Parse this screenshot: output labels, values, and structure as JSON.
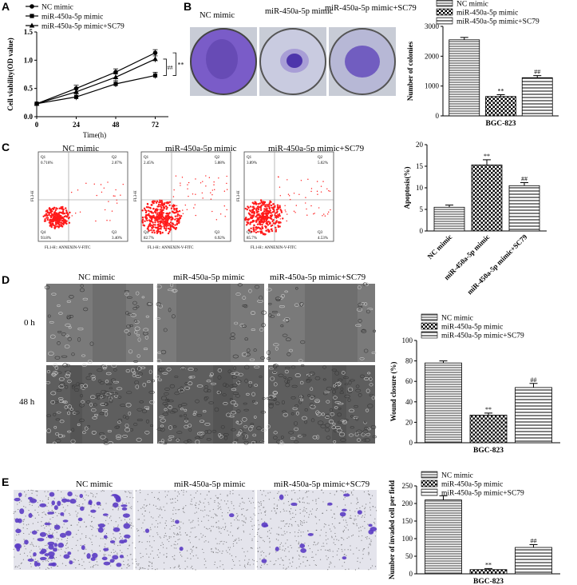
{
  "panels": {
    "a": "A",
    "b": "B",
    "c": "C",
    "d": "D",
    "e": "E"
  },
  "groups": [
    "NC mimic",
    "miR-450a-5p mimic",
    "miR-450a-5p mimic+SC79"
  ],
  "panelB": {
    "photo_labels": [
      "NC mimic",
      "miR-450a-5p mimic",
      "miR-450a-5p mimic+SC79"
    ]
  },
  "panelC": {
    "flow_labels": [
      "NC mimic",
      "miR-450a-5p mimic",
      "miR-450a-5p mimic+SC79"
    ],
    "flow_quads": [
      {
        "q1": "Q1",
        "q1v": "0.716%",
        "q2": "Q2",
        "q2v": "2.07%",
        "q3": "Q3",
        "q3v": "3.40%",
        "q4": "Q4",
        "q4v": "93.8%"
      },
      {
        "q1": "Q1",
        "q1v": "2.45%",
        "q2": "Q2",
        "q2v": "5.88%",
        "q3": "Q3",
        "q3v": "6.92%",
        "q4": "Q4",
        "q4v": "82.7%"
      },
      {
        "q1": "Q1",
        "q1v": "3.89%",
        "q2": "Q2",
        "q2v": "5.02%",
        "q3": "Q3",
        "q3v": "4.53%",
        "q4": "Q4",
        "q4v": "85.7%"
      }
    ],
    "flow_xlabel": "FL1-H:: ANNEXIN-V-FITC",
    "flow_ylabel": "FL3-H"
  },
  "panelD": {
    "col_labels": [
      "NC mimic",
      "miR-450a-5p mimic",
      "miR-450a-5p mimic+SC79"
    ],
    "row_labels": [
      "0 h",
      "48 h"
    ]
  },
  "panelE": {
    "col_labels": [
      "NC mimic",
      "miR-450a-5p mimic",
      "miR-450a-5p mimic+SC79"
    ]
  },
  "colors": {
    "photo_purple": "#6a4bc4",
    "scratch_gray": "#6b6b6b",
    "flow_red": "#ff1a1a"
  },
  "chart_data": [
    {
      "id": "A",
      "type": "line",
      "x": [
        0,
        24,
        48,
        72
      ],
      "xlabel": "Time(h)",
      "ylabel": "Cell viability(OD value)",
      "xlim": [
        0,
        80
      ],
      "ylim": [
        0,
        1.5
      ],
      "xticks": [
        "0",
        "24",
        "48",
        "72"
      ],
      "yticks": [
        "0.0",
        "0.5",
        "1.0",
        "1.5"
      ],
      "series": [
        {
          "name": "NC mimic",
          "values": [
            0.23,
            0.5,
            0.79,
            1.13
          ],
          "marker": "circle"
        },
        {
          "name": "miR-450a-5p mimic",
          "values": [
            0.23,
            0.35,
            0.58,
            0.73
          ],
          "marker": "square"
        },
        {
          "name": "miR-450a-5p mimic+SC79",
          "values": [
            0.23,
            0.44,
            0.7,
            1.02
          ],
          "marker": "triangle"
        }
      ],
      "annotations": [
        "**",
        "##"
      ]
    },
    {
      "id": "B",
      "type": "bar",
      "categories": [
        "NC mimic",
        "miR-450a-5p mimic",
        "miR-450a-5p mimic+SC79"
      ],
      "values": [
        2550,
        650,
        1280
      ],
      "errors": [
        80,
        60,
        70
      ],
      "xlabel": "BGC-823",
      "ylabel": "Number of colonies",
      "ylim": [
        0,
        3000
      ],
      "yticks": [
        "0",
        "1000",
        "2000",
        "3000"
      ],
      "sig": [
        "",
        "**",
        "##"
      ]
    },
    {
      "id": "C",
      "type": "bar",
      "categories": [
        "NC mimic",
        "miR-450a-5p mimic",
        "miR-450a-5p mimic+SC79"
      ],
      "values": [
        5.5,
        15.3,
        10.5
      ],
      "errors": [
        0.5,
        1.2,
        0.7
      ],
      "xlabel": "",
      "ylabel": "Apoptosis(%)",
      "ylim": [
        0,
        20
      ],
      "yticks": [
        "0",
        "5",
        "10",
        "15",
        "20"
      ],
      "sig": [
        "",
        "**",
        "##"
      ]
    },
    {
      "id": "D",
      "type": "bar",
      "categories": [
        "NC mimic",
        "miR-450a-5p mimic",
        "miR-450a-5p mimic+SC79"
      ],
      "values": [
        78,
        27,
        54
      ],
      "errors": [
        2,
        2,
        4
      ],
      "xlabel": "BGC-823",
      "ylabel": "Wound closure (%)",
      "ylim": [
        0,
        100
      ],
      "yticks": [
        "0",
        "20",
        "40",
        "60",
        "80",
        "100"
      ],
      "sig": [
        "",
        "**",
        "##"
      ]
    },
    {
      "id": "E",
      "type": "bar",
      "categories": [
        "NC mimic",
        "miR-450a-5p mimic",
        "miR-450a-5p mimic+SC79"
      ],
      "values": [
        210,
        12,
        75
      ],
      "errors": [
        12,
        3,
        8
      ],
      "xlabel": "BGC-823",
      "ylabel": "Number of invaded cell per field",
      "ylim": [
        0,
        250
      ],
      "yticks": [
        "0",
        "50",
        "100",
        "150",
        "200",
        "250"
      ],
      "sig": [
        "",
        "**",
        "##"
      ]
    }
  ]
}
